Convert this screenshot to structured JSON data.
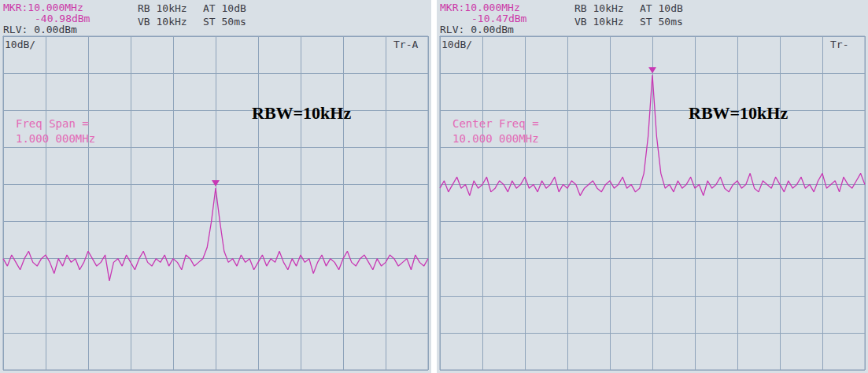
{
  "chart_data": [
    {
      "type": "line",
      "color": "#c838b4",
      "grid": true,
      "tick_labels": false,
      "xlim": [
        9.5,
        10.5
      ],
      "xticks": [
        9.5,
        9.6,
        9.7,
        9.8,
        9.9,
        10.0,
        10.1,
        10.2,
        10.3,
        10.4,
        10.5
      ],
      "ylim": [
        -90,
        0
      ],
      "yticks": [
        -90,
        -80,
        -70,
        -60,
        -50,
        -40,
        -30,
        -20,
        -10,
        0
      ],
      "annotations": [
        "MKR:10.000MHz",
        "-40.98dBm",
        "RLV: 0.00dBm",
        "RB 10kHz",
        "VB 10kHz",
        "AT 10dB",
        "ST 50ms",
        "10dB/",
        "Tr-A",
        "Freq Span =",
        "1.000 000MHz",
        "RBW=10kHz"
      ],
      "x": [
        9.5,
        9.51,
        9.52,
        9.53,
        9.54,
        9.55,
        9.56,
        9.57,
        9.58,
        9.59,
        9.6,
        9.61,
        9.62,
        9.63,
        9.64,
        9.65,
        9.66,
        9.67,
        9.68,
        9.69,
        9.7,
        9.71,
        9.72,
        9.73,
        9.74,
        9.75,
        9.76,
        9.77,
        9.78,
        9.79,
        9.8,
        9.81,
        9.82,
        9.83,
        9.84,
        9.85,
        9.86,
        9.87,
        9.88,
        9.89,
        9.9,
        9.91,
        9.92,
        9.93,
        9.94,
        9.95,
        9.96,
        9.97,
        9.98,
        9.99,
        10.0,
        10.01,
        10.02,
        10.03,
        10.04,
        10.05,
        10.06,
        10.07,
        10.08,
        10.09,
        10.1,
        10.11,
        10.12,
        10.13,
        10.14,
        10.15,
        10.16,
        10.17,
        10.18,
        10.19,
        10.2,
        10.21,
        10.22,
        10.23,
        10.24,
        10.25,
        10.26,
        10.27,
        10.28,
        10.29,
        10.3,
        10.31,
        10.32,
        10.33,
        10.34,
        10.35,
        10.36,
        10.37,
        10.38,
        10.39,
        10.4,
        10.41,
        10.42,
        10.43,
        10.44,
        10.45,
        10.46,
        10.47,
        10.48,
        10.49,
        10.5
      ],
      "values": [
        -60,
        -62,
        -59,
        -61,
        -63,
        -60,
        -58,
        -61,
        -62,
        -60,
        -59,
        -61,
        -64,
        -60,
        -62,
        -59,
        -61,
        -60,
        -63,
        -61,
        -58,
        -60,
        -62,
        -61,
        -59,
        -66,
        -61,
        -60,
        -62,
        -59,
        -61,
        -63,
        -60,
        -58,
        -61,
        -62,
        -60,
        -61,
        -59,
        -62,
        -60,
        -61,
        -63,
        -59,
        -60,
        -62,
        -61,
        -60,
        -57,
        -50,
        -40.98,
        -50,
        -58,
        -61,
        -60,
        -62,
        -59,
        -61,
        -60,
        -63,
        -61,
        -59,
        -62,
        -60,
        -61,
        -58,
        -61,
        -63,
        -60,
        -62,
        -59,
        -61,
        -60,
        -64,
        -61,
        -59,
        -62,
        -60,
        -61,
        -63,
        -60,
        -58,
        -61,
        -62,
        -60,
        -59,
        -61,
        -63,
        -60,
        -62,
        -61,
        -59,
        -60,
        -62,
        -61,
        -60,
        -63,
        -59,
        -61,
        -62,
        -60
      ]
    },
    {
      "type": "line",
      "color": "#c838b4",
      "grid": true,
      "tick_labels": false,
      "xlim": [
        9.5,
        10.5
      ],
      "xticks": [
        9.5,
        9.6,
        9.7,
        9.8,
        9.9,
        10.0,
        10.1,
        10.2,
        10.3,
        10.4,
        10.5
      ],
      "ylim": [
        -90,
        0
      ],
      "yticks": [
        -90,
        -80,
        -70,
        -60,
        -50,
        -40,
        -30,
        -20,
        -10,
        0
      ],
      "annotations": [
        "MKR:10.000MHz",
        "-10.47dBm",
        "RLV: 0.00dBm",
        "RB 10kHz",
        "VB 10kHz",
        "AT 10dB",
        "ST 50ms",
        "10dB/",
        "Tr-",
        "Center Freq =",
        "10.000 000MHz",
        "RBW=10kHz"
      ],
      "x": [
        9.5,
        9.51,
        9.52,
        9.53,
        9.54,
        9.55,
        9.56,
        9.57,
        9.58,
        9.59,
        9.6,
        9.61,
        9.62,
        9.63,
        9.64,
        9.65,
        9.66,
        9.67,
        9.68,
        9.69,
        9.7,
        9.71,
        9.72,
        9.73,
        9.74,
        9.75,
        9.76,
        9.77,
        9.78,
        9.79,
        9.8,
        9.81,
        9.82,
        9.83,
        9.84,
        9.85,
        9.86,
        9.87,
        9.88,
        9.89,
        9.9,
        9.91,
        9.92,
        9.93,
        9.94,
        9.95,
        9.96,
        9.97,
        9.98,
        9.99,
        10.0,
        10.01,
        10.02,
        10.03,
        10.04,
        10.05,
        10.06,
        10.07,
        10.08,
        10.09,
        10.1,
        10.11,
        10.12,
        10.13,
        10.14,
        10.15,
        10.16,
        10.17,
        10.18,
        10.19,
        10.2,
        10.21,
        10.22,
        10.23,
        10.24,
        10.25,
        10.26,
        10.27,
        10.28,
        10.29,
        10.3,
        10.31,
        10.32,
        10.33,
        10.34,
        10.35,
        10.36,
        10.37,
        10.38,
        10.39,
        10.4,
        10.41,
        10.42,
        10.43,
        10.44,
        10.45,
        10.46,
        10.47,
        10.48,
        10.49,
        10.5
      ],
      "values": [
        -41,
        -39,
        -42,
        -40,
        -38,
        -41,
        -40,
        -43,
        -39,
        -41,
        -40,
        -38,
        -42,
        -41,
        -39,
        -40,
        -42,
        -39,
        -41,
        -40,
        -38,
        -41,
        -40,
        -42,
        -39,
        -41,
        -40,
        -38,
        -42,
        -40,
        -41,
        -39,
        -40,
        -43,
        -41,
        -40,
        -39,
        -41,
        -42,
        -40,
        -39,
        -41,
        -40,
        -38,
        -41,
        -40,
        -42,
        -41,
        -37,
        -27,
        -10.47,
        -27,
        -37,
        -41,
        -40,
        -42,
        -39,
        -41,
        -40,
        -38,
        -41,
        -40,
        -43,
        -39,
        -41,
        -40,
        -38,
        -41,
        -42,
        -40,
        -39,
        -41,
        -40,
        -37,
        -41,
        -42,
        -39,
        -40,
        -41,
        -38,
        -40,
        -42,
        -39,
        -41,
        -40,
        -38,
        -41,
        -40,
        -42,
        -39,
        -37,
        -41,
        -40,
        -39,
        -42,
        -38,
        -40,
        -41,
        -39,
        -37,
        -40
      ]
    }
  ]
}
